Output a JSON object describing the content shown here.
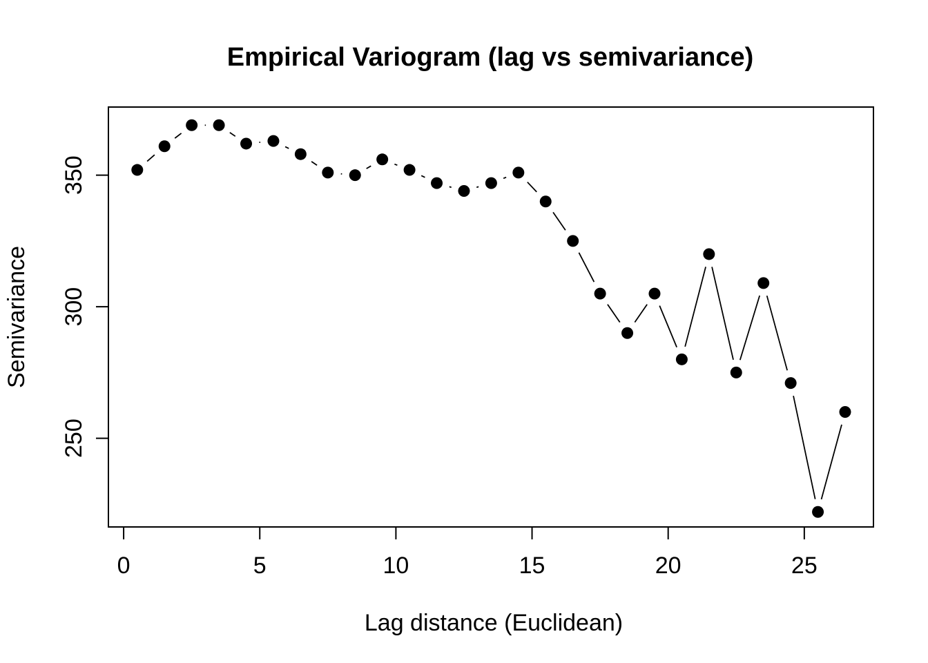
{
  "chart_data": {
    "type": "line",
    "title": "Empirical Variogram (lag vs semivariance)",
    "xlabel": "Lag distance (Euclidean)",
    "ylabel": "Semivariance",
    "x": [
      0.5,
      1.5,
      2.5,
      3.5,
      4.5,
      5.5,
      6.5,
      7.5,
      8.5,
      9.5,
      10.5,
      11.5,
      12.5,
      13.5,
      14.5,
      15.5,
      16.5,
      17.5,
      18.5,
      19.5,
      20.5,
      21.5,
      22.5,
      23.5,
      24.5,
      25.5,
      26.5
    ],
    "y": [
      352,
      361,
      369,
      369,
      362,
      363,
      358,
      351,
      350,
      356,
      352,
      347,
      344,
      347,
      351,
      340,
      325,
      305,
      290,
      305,
      280,
      320,
      275,
      309,
      271,
      222,
      260
    ],
    "xticks": [
      0,
      5,
      10,
      15,
      20,
      25
    ],
    "yticks": [
      250,
      300,
      350
    ],
    "xlim": [
      -0.56,
      27.54
    ],
    "ylim": [
      216.3,
      375.9
    ],
    "grid": false,
    "legend": false,
    "marker": "filled-circle",
    "line_type": "b-segments-with-gaps",
    "series_color": "#000000",
    "background_color": "#ffffff"
  }
}
